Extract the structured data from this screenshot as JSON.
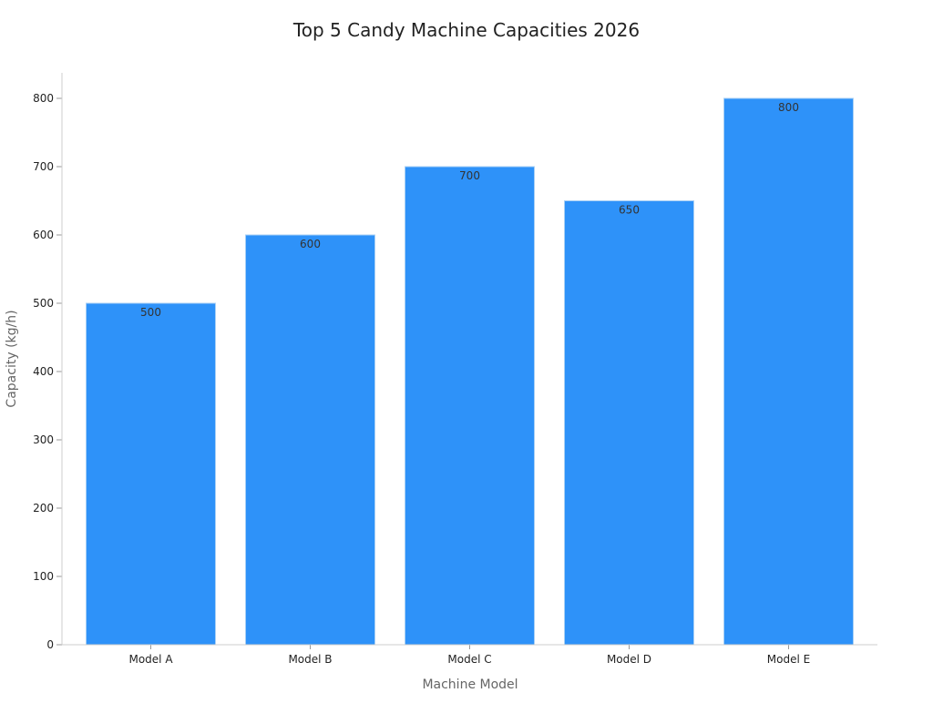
{
  "chart_data": {
    "type": "bar",
    "title": "Top 5 Candy Machine Capacities 2026",
    "xlabel": "Machine Model",
    "ylabel": "Capacity (kg/h)",
    "categories": [
      "Model A",
      "Model B",
      "Model C",
      "Model D",
      "Model E"
    ],
    "values": [
      500,
      600,
      700,
      650,
      800
    ],
    "data_labels": [
      "500",
      "600",
      "700",
      "650",
      "800"
    ],
    "ylim": [
      0,
      840
    ],
    "yticks": [
      0,
      100,
      200,
      300,
      400,
      500,
      600,
      700,
      800
    ],
    "grid": false,
    "legend": "none",
    "colors": {
      "bar": "#2e92f9",
      "bar_edge": "#a9d0f5",
      "axis": "#cccccc",
      "tick_text": "#222222",
      "label_text": "#666666",
      "title_text": "#222222",
      "data_label_text": "#333333"
    }
  }
}
